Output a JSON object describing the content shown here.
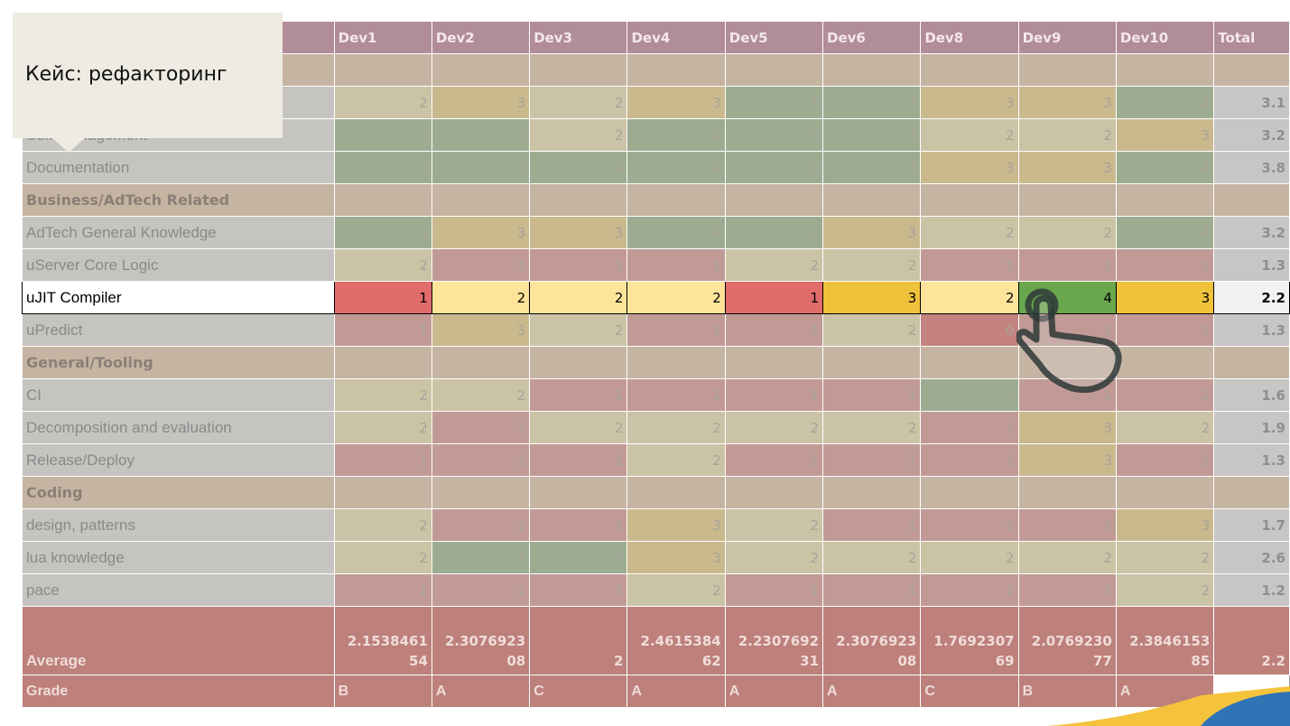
{
  "callout": {
    "text": "Кейс: рефакторинг"
  },
  "headers": [
    "",
    "Dev1",
    "Dev2",
    "Dev3",
    "Dev4",
    "Dev5",
    "Dev6",
    "Dev8",
    "Dev9",
    "Dev10",
    "Total"
  ],
  "rows": [
    {
      "type": "section",
      "label": ""
    },
    {
      "type": "data",
      "label": "",
      "values": [
        "2",
        "3",
        "2",
        "3",
        "4",
        "4",
        "3",
        "3",
        "4"
      ],
      "total": "3.1"
    },
    {
      "type": "data",
      "label": "Self-Management",
      "values": [
        "4",
        "4",
        "2",
        "4",
        "4",
        "4",
        "2",
        "2",
        "3"
      ],
      "total": "3.2"
    },
    {
      "type": "data",
      "label": "Documentation",
      "values": [
        "4",
        "4",
        "4",
        "4",
        "4",
        "4",
        "3",
        "3",
        "4"
      ],
      "total": "3.8"
    },
    {
      "type": "section",
      "label": "Business/AdTech Related"
    },
    {
      "type": "data",
      "label": "AdTech General Knowledge",
      "values": [
        "4",
        "3",
        "3",
        "4",
        "4",
        "3",
        "2",
        "2",
        "4"
      ],
      "total": "3.2"
    },
    {
      "type": "data",
      "label": "uServer Core Logic",
      "values": [
        "2",
        "1",
        "1",
        "1",
        "2",
        "2",
        "1",
        "1",
        "1"
      ],
      "total": "1.3"
    },
    {
      "type": "highlight",
      "label": "uJIT Compiler",
      "values": [
        "1",
        "2",
        "2",
        "2",
        "1",
        "3",
        "2",
        "4",
        "3"
      ],
      "total": "2.2"
    },
    {
      "type": "data",
      "label": "uPredict",
      "values": [
        "1",
        "3",
        "2",
        "1",
        "1",
        "2",
        "0",
        "1",
        "1"
      ],
      "total": "1.3"
    },
    {
      "type": "section",
      "label": "General/Tooling"
    },
    {
      "type": "data",
      "label": "CI",
      "values": [
        "2",
        "2",
        "1",
        "1",
        "1",
        "1",
        "4",
        "1",
        "1"
      ],
      "total": "1.6"
    },
    {
      "type": "data",
      "label": "Decomposition and evaluation",
      "values": [
        "2",
        "1",
        "2",
        "2",
        "2",
        "2",
        "1",
        "3",
        "2"
      ],
      "total": "1.9"
    },
    {
      "type": "data",
      "label": "Release/Deploy",
      "values": [
        "1",
        "1",
        "1",
        "2",
        "1",
        "1",
        "1",
        "3",
        "1"
      ],
      "total": "1.3"
    },
    {
      "type": "section",
      "label": "Coding"
    },
    {
      "type": "data",
      "label": "design, patterns",
      "values": [
        "2",
        "1",
        "1",
        "3",
        "2",
        "1",
        "1",
        "1",
        "3"
      ],
      "total": "1.7"
    },
    {
      "type": "data",
      "label": "lua knowledge",
      "values": [
        "2",
        "4",
        "4",
        "3",
        "2",
        "2",
        "2",
        "2",
        "2"
      ],
      "total": "2.6"
    },
    {
      "type": "data",
      "label": "pace",
      "values": [
        "1",
        "1",
        "1",
        "2",
        "1",
        "1",
        "1",
        "1",
        "2"
      ],
      "total": "1.2"
    }
  ],
  "average": {
    "label": "Average",
    "values": [
      "2.153846154",
      "2.307692308",
      "2",
      "2.461538462",
      "2.230769231",
      "2.307692308",
      "1.769230769",
      "2.076923077",
      "2.384615385"
    ],
    "total": "2.2"
  },
  "grade": {
    "label": "Grade",
    "values": [
      "B",
      "A",
      "C",
      "A",
      "A",
      "A",
      "C",
      "B",
      "A"
    ]
  },
  "colors": {
    "header": "#b18d98",
    "section": "#c6b4a2",
    "score_4": "#9dac91",
    "score_3": "#c9b98d",
    "score_2": "#cbc3a5",
    "score_1": "#c19a96",
    "score_0": "#c4837f",
    "highlight_1": "#e26b6b",
    "highlight_2": "#fee49b",
    "highlight_3": "#f0c23b",
    "highlight_4": "#6aa64b",
    "average_row": "#bd807b"
  },
  "icons": {
    "pointer": "hand-pointer-icon"
  }
}
